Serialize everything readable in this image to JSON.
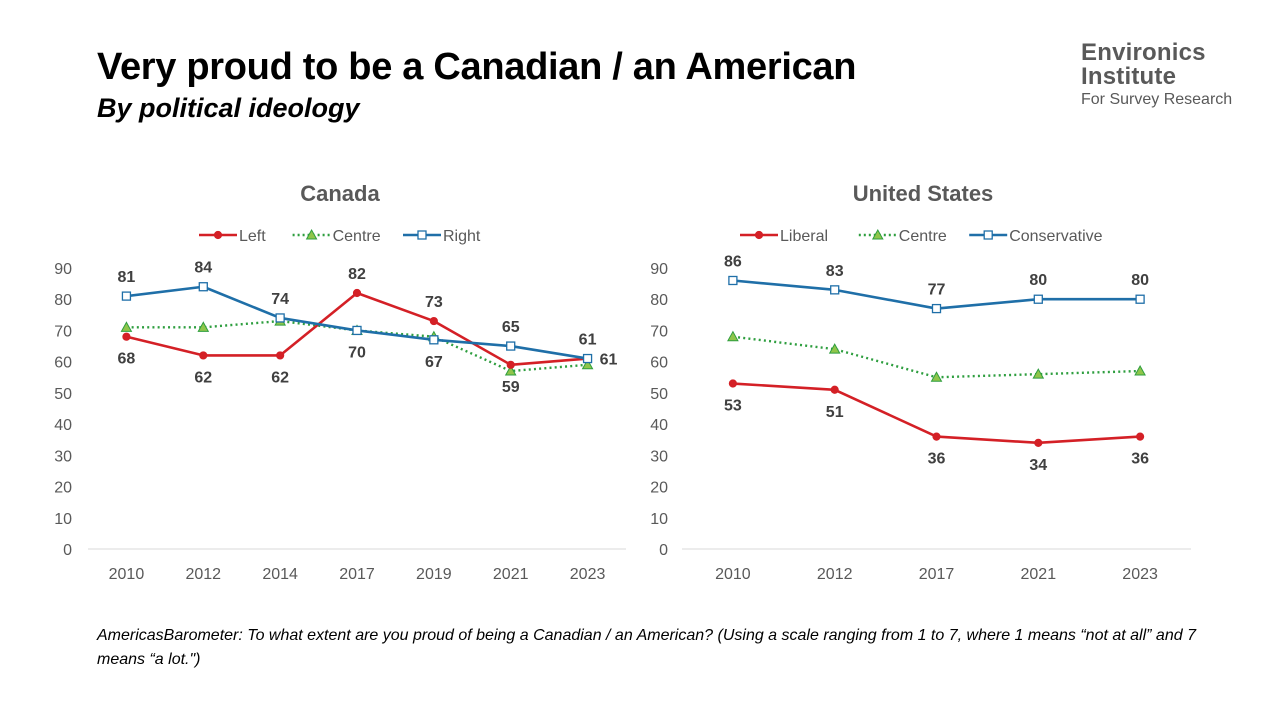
{
  "header": {
    "title": "Very proud to be a Canadian / an American",
    "subtitle": "By political ideology"
  },
  "logo": {
    "line1": "Environics",
    "line2": "Institute",
    "line3": "For Survey Research"
  },
  "footnote": "AmericasBarometer: To what extent are you proud of being a Canadian / an American? (Using a scale ranging from 1 to 7, where 1 means “not at all” and 7 means “a lot.\")",
  "colors": {
    "left": "#d42026",
    "centre": "#2e9e3f",
    "centre_marker": "#8fc54a",
    "right": "#1f6fa8",
    "axis_text": "#595959",
    "title_text": "#595959",
    "grid": "#d9d9d9"
  },
  "chart_data": [
    {
      "type": "line",
      "title": "Canada",
      "categories": [
        "2010",
        "2012",
        "2014",
        "2017",
        "2019",
        "2021",
        "2023"
      ],
      "ylim": [
        0,
        90
      ],
      "yticks": [
        0,
        10,
        20,
        30,
        40,
        50,
        60,
        70,
        80,
        90
      ],
      "grid": false,
      "legend_position": "top-center",
      "series": [
        {
          "name": "Left",
          "color_key": "left",
          "style": "solid",
          "marker": "circle",
          "values": [
            68,
            62,
            62,
            82,
            73,
            59,
            61
          ],
          "labels": [
            true,
            true,
            true,
            true,
            true,
            true,
            true
          ],
          "label_pos": [
            "below",
            "below",
            "below",
            "above",
            "above",
            "below",
            "right"
          ]
        },
        {
          "name": "Centre",
          "color_key": "centre",
          "style": "dotted",
          "marker": "triangle",
          "values": [
            71,
            71,
            73,
            70,
            68,
            57,
            59
          ],
          "labels": [
            false,
            false,
            false,
            false,
            false,
            false,
            false
          ]
        },
        {
          "name": "Right",
          "color_key": "right",
          "style": "solid",
          "marker": "square",
          "values": [
            81,
            84,
            74,
            70,
            67,
            65,
            61
          ],
          "labels": [
            true,
            true,
            true,
            true,
            true,
            true,
            true
          ],
          "label_pos": [
            "above",
            "above",
            "above",
            "below",
            "below",
            "above",
            "above"
          ]
        }
      ]
    },
    {
      "type": "line",
      "title": "United States",
      "categories": [
        "2010",
        "2012",
        "2017",
        "2021",
        "2023"
      ],
      "ylim": [
        0,
        90
      ],
      "yticks": [
        0,
        10,
        20,
        30,
        40,
        50,
        60,
        70,
        80,
        90
      ],
      "grid": false,
      "legend_position": "top-center",
      "series": [
        {
          "name": "Liberal",
          "color_key": "left",
          "style": "solid",
          "marker": "circle",
          "values": [
            53,
            51,
            36,
            34,
            36
          ],
          "labels": [
            true,
            true,
            true,
            true,
            true
          ],
          "label_pos": [
            "below",
            "below",
            "below",
            "below",
            "below"
          ]
        },
        {
          "name": "Centre",
          "color_key": "centre",
          "style": "dotted",
          "marker": "triangle",
          "values": [
            68,
            64,
            55,
            56,
            57
          ],
          "labels": [
            false,
            false,
            false,
            false,
            false
          ]
        },
        {
          "name": "Conservative",
          "color_key": "right",
          "style": "solid",
          "marker": "square",
          "values": [
            86,
            83,
            77,
            80,
            80
          ],
          "labels": [
            true,
            true,
            true,
            true,
            true
          ],
          "label_pos": [
            "above",
            "above",
            "above",
            "above",
            "above"
          ]
        }
      ]
    }
  ]
}
